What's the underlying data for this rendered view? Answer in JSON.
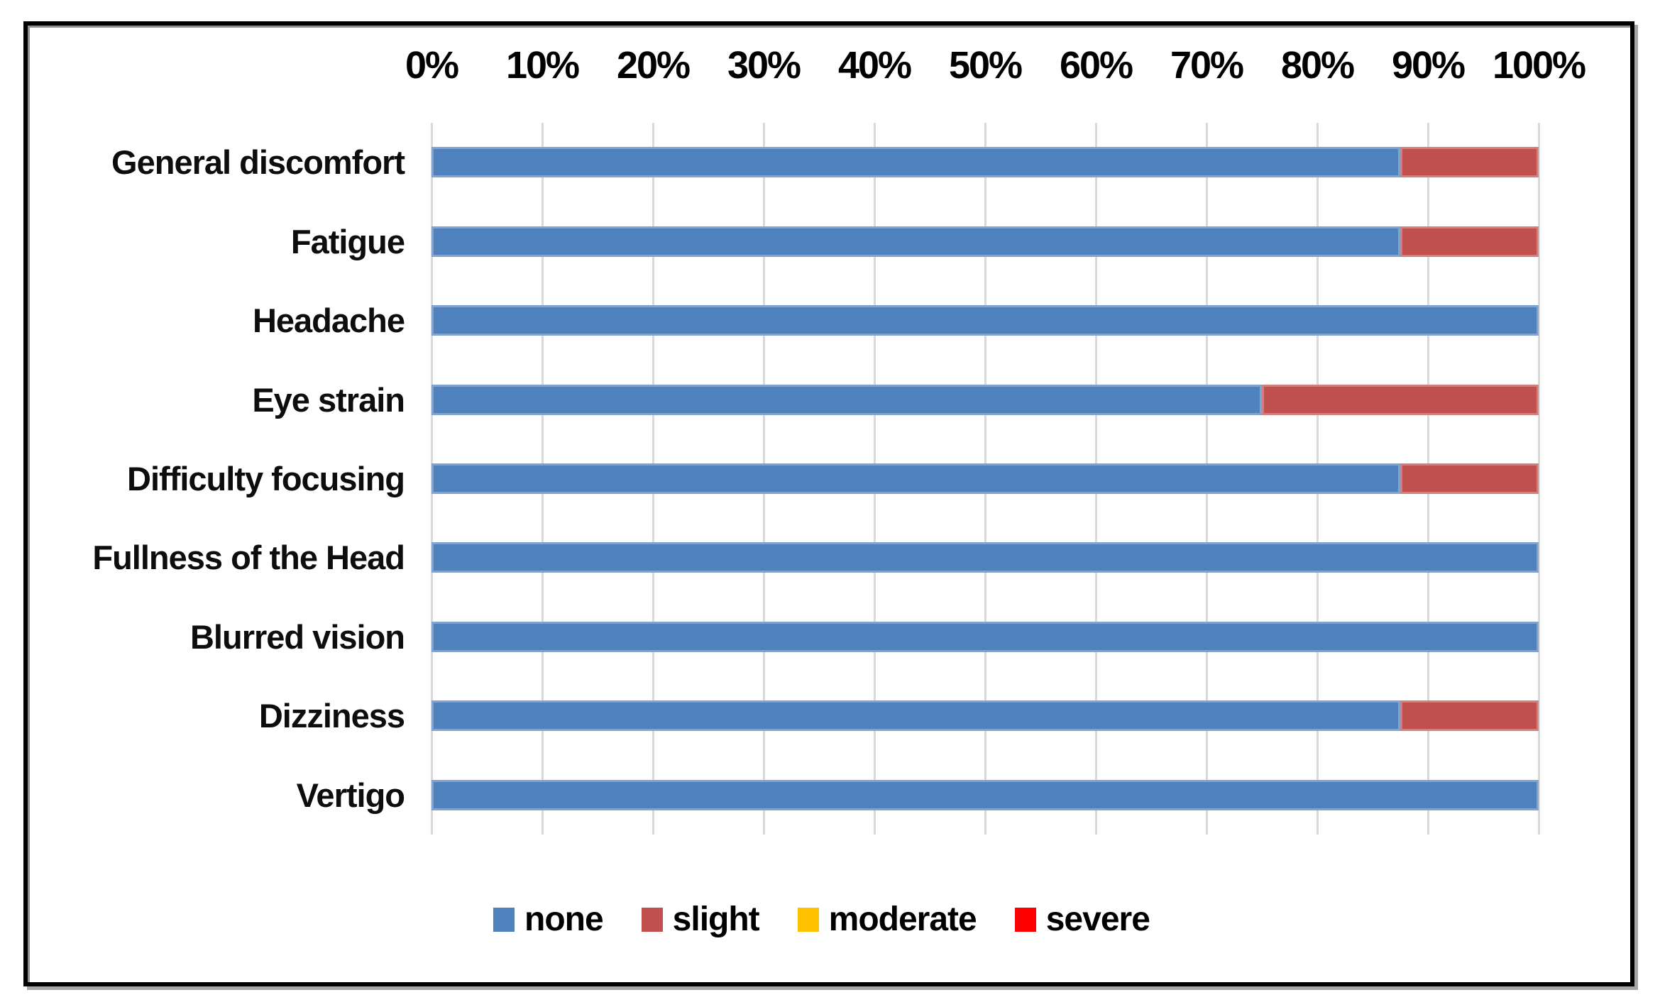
{
  "chart_data": {
    "type": "bar",
    "orientation": "horizontal",
    "stacked": true,
    "title": "",
    "xlabel": "",
    "ylabel": "",
    "unit": "percent",
    "xlim": [
      0,
      100
    ],
    "grid": "vertical",
    "gridline_color": "#d9d9d9",
    "x_ticks": [
      "0%",
      "10%",
      "20%",
      "30%",
      "40%",
      "50%",
      "60%",
      "70%",
      "80%",
      "90%",
      "100%"
    ],
    "categories": [
      "General discomfort",
      "Fatigue",
      "Headache",
      "Eye strain",
      "Difficulty focusing",
      "Fullness of the Head",
      "Blurred vision",
      "Dizziness",
      "Vertigo"
    ],
    "series": [
      {
        "name": "none",
        "color": "#4F81BD",
        "values": [
          87.5,
          87.5,
          100,
          75,
          87.5,
          100,
          100,
          87.5,
          100
        ]
      },
      {
        "name": "slight",
        "color": "#C0504D",
        "values": [
          12.5,
          12.5,
          0,
          25,
          12.5,
          0,
          0,
          12.5,
          0
        ]
      },
      {
        "name": "moderate",
        "color": "#FFC000",
        "values": [
          0,
          0,
          0,
          0,
          0,
          0,
          0,
          0,
          0
        ]
      },
      {
        "name": "severe",
        "color": "#FF0000",
        "values": [
          0,
          0,
          0,
          0,
          0,
          0,
          0,
          0,
          0
        ]
      }
    ],
    "legend_position": "bottom",
    "legend_labels": [
      "none",
      "slight",
      "moderate",
      "severe"
    ]
  },
  "figure": {
    "border_color": "#000000",
    "background_color": "#ffffff"
  }
}
